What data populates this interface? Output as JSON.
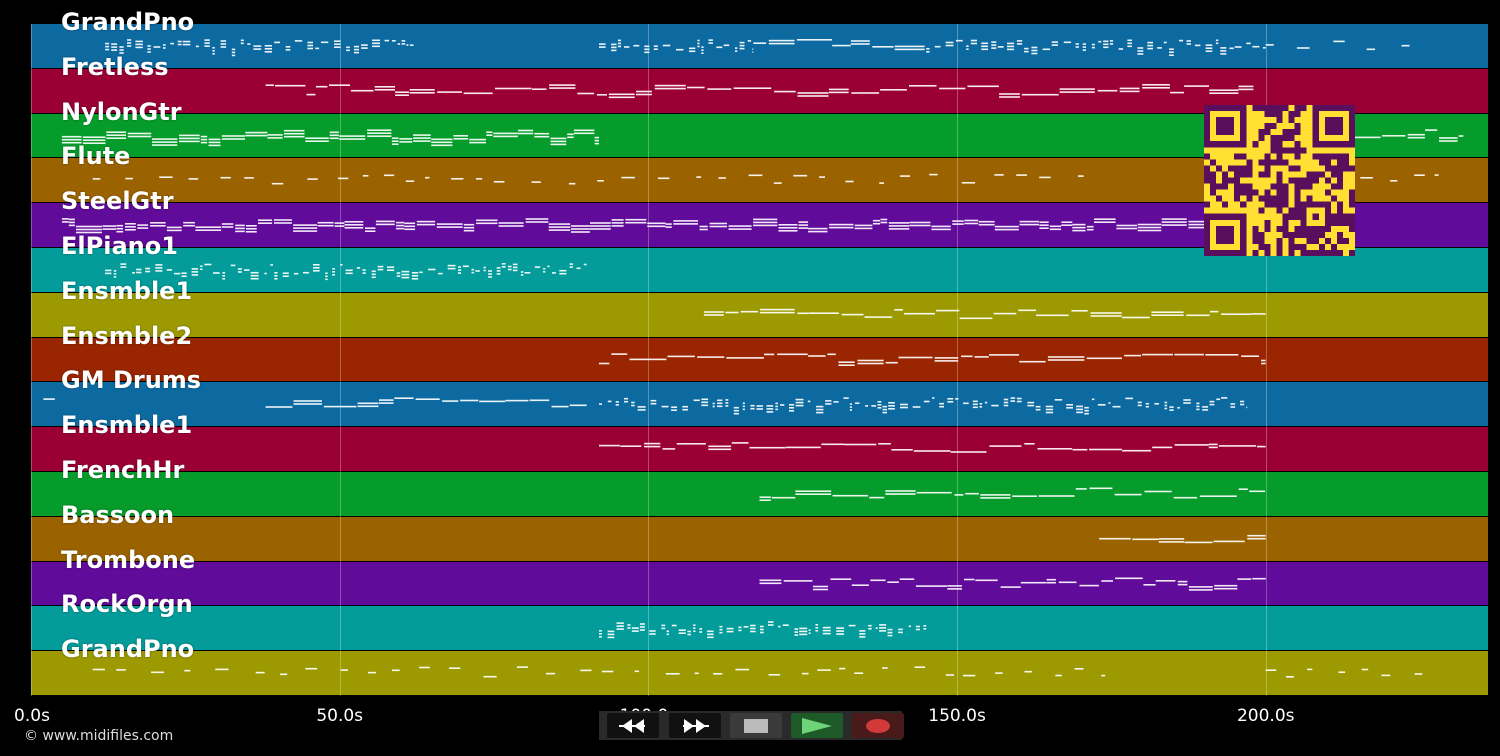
{
  "tracks": [
    {
      "name": "GrandPno",
      "color": "#0d6aa1"
    },
    {
      "name": "Fretless",
      "color": "#9b0034"
    },
    {
      "name": "NylonGtr",
      "color": "#069c2b"
    },
    {
      "name": "Flute",
      "color": "#9b6300"
    },
    {
      "name": "SteelGtr",
      "color": "#600b9a"
    },
    {
      "name": "ElPiano1",
      "color": "#039c9a"
    },
    {
      "name": "Ensmble1",
      "color": "#9c9a00"
    },
    {
      "name": "Ensmble2",
      "color": "#992600"
    },
    {
      "name": "GM Drums",
      "color": "#0d6aa1"
    },
    {
      "name": "Ensmble1",
      "color": "#9b0034"
    },
    {
      "name": "FrenchHr",
      "color": "#069c2b"
    },
    {
      "name": "Bassoon",
      "color": "#9b6300"
    },
    {
      "name": "Trombone",
      "color": "#600b9a"
    },
    {
      "name": "RockOrgn",
      "color": "#039c9a"
    },
    {
      "name": "GrandPno",
      "color": "#9c9a00"
    }
  ],
  "timeline": {
    "ticks": [
      "0.0s",
      "50.0s",
      "100.0s",
      "150.0s",
      "200.0s"
    ],
    "tick_seconds": [
      0,
      50,
      100,
      150,
      200
    ],
    "max_seconds": 236
  },
  "controls": {
    "rewind": "rewind-icon",
    "fast_forward": "fast-forward-icon",
    "stop": "stop-icon",
    "play": "play-icon",
    "record": "record-icon"
  },
  "copyright": "© www.midifiles.com"
}
